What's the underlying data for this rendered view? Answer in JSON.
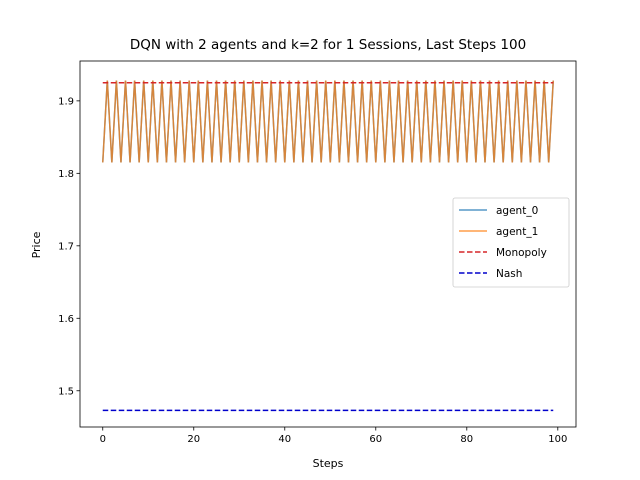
{
  "chart_data": {
    "type": "line",
    "title": "DQN with 2 agents and k=2 for 1 Sessions, Last Steps 100",
    "xlabel": "Steps",
    "ylabel": "Price",
    "xlim": [
      -5,
      104
    ],
    "ylim": [
      1.45,
      1.955
    ],
    "xticks": [
      0,
      20,
      40,
      60,
      80,
      100
    ],
    "yticks": [
      1.5,
      1.6,
      1.7,
      1.8,
      1.9
    ],
    "ytick_labels": [
      "1.5",
      "1.6",
      "1.7",
      "1.8",
      "1.9"
    ],
    "grid": false,
    "legend_position": "center-right",
    "oscillation": {
      "steps": 100,
      "low": 1.815,
      "high": 1.928,
      "start": "low"
    },
    "series": [
      {
        "name": "agent_0",
        "color": "#1f77b4",
        "style": "solid",
        "opacity": 0.75
      },
      {
        "name": "agent_1",
        "color": "#ff7f0e",
        "style": "solid",
        "opacity": 0.75
      },
      {
        "name": "Monopoly",
        "color": "#d62728",
        "style": "dashed",
        "value": 1.925
      },
      {
        "name": "Nash",
        "color": "#0000cc",
        "style": "dashed",
        "value": 1.473
      }
    ]
  }
}
